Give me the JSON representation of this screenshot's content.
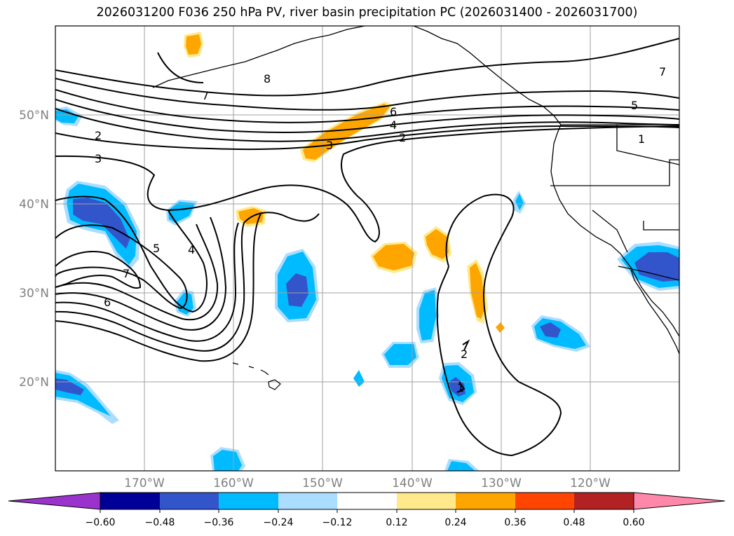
{
  "title": "2026031200 F036 250 hPa PV, river basin precipitation PC (2026031400 - 2026031700)",
  "map": {
    "projection": "equirectangular",
    "lon_range": [
      -180,
      -110
    ],
    "lat_range": [
      10,
      60
    ],
    "latitude_labels": [
      "20°N",
      "30°N",
      "40°N",
      "50°N"
    ],
    "longitude_labels": [
      "170°W",
      "160°W",
      "150°W",
      "140°W",
      "130°W",
      "120°W"
    ],
    "gridlines": true,
    "gridline_color": "#a0a0a0",
    "coastline_color": "#000000"
  },
  "pv_contour_labels": [
    "7",
    "6",
    "4",
    "2",
    "3",
    "2",
    "3",
    "5",
    "4",
    "7",
    "6",
    "5",
    "1",
    "2",
    "1",
    "8",
    "7"
  ],
  "colorbar": {
    "ticks": [
      "−0.60",
      "−0.48",
      "−0.36",
      "−0.24",
      "−0.12",
      "0.12",
      "0.24",
      "0.36",
      "0.48",
      "0.60"
    ],
    "colors": [
      "#9933cc",
      "#000099",
      "#3355cc",
      "#00bbff",
      "#aaddff",
      "#ffffff",
      "#ffe98a",
      "#ffa500",
      "#ff4500",
      "#b22222",
      "#ff88aa"
    ],
    "extend": "both"
  }
}
